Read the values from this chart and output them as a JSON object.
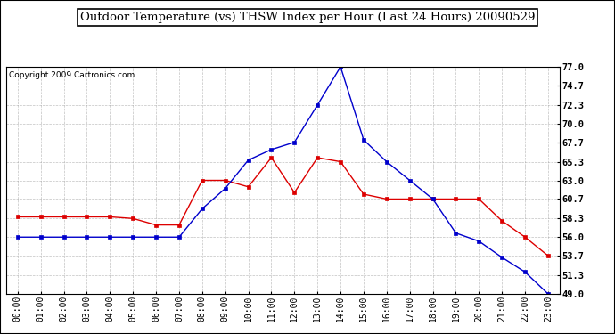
{
  "title": "Outdoor Temperature (vs) THSW Index per Hour (Last 24 Hours) 20090529",
  "copyright": "Copyright 2009 Cartronics.com",
  "hours": [
    0,
    1,
    2,
    3,
    4,
    5,
    6,
    7,
    8,
    9,
    10,
    11,
    12,
    13,
    14,
    15,
    16,
    17,
    18,
    19,
    20,
    21,
    22,
    23
  ],
  "x_labels": [
    "00:00",
    "01:00",
    "02:00",
    "03:00",
    "04:00",
    "05:00",
    "06:00",
    "07:00",
    "08:00",
    "09:00",
    "10:00",
    "11:00",
    "12:00",
    "13:00",
    "14:00",
    "15:00",
    "16:00",
    "17:00",
    "18:00",
    "19:00",
    "20:00",
    "21:00",
    "22:00",
    "23:00"
  ],
  "red_data": [
    58.5,
    58.5,
    58.5,
    58.5,
    58.5,
    58.3,
    57.5,
    57.5,
    63.0,
    63.0,
    62.2,
    65.8,
    61.5,
    65.8,
    65.3,
    61.3,
    60.7,
    60.7,
    60.7,
    60.7,
    60.7,
    58.0,
    56.0,
    53.7
  ],
  "blue_data": [
    56.0,
    56.0,
    56.0,
    56.0,
    56.0,
    56.0,
    56.0,
    56.0,
    59.5,
    62.0,
    65.5,
    66.8,
    67.7,
    72.3,
    77.0,
    68.0,
    65.3,
    63.0,
    60.7,
    56.5,
    55.5,
    53.5,
    51.7,
    49.0
  ],
  "red_color": "#dd0000",
  "blue_color": "#0000cc",
  "ylim_min": 49.0,
  "ylim_max": 77.0,
  "yticks": [
    49.0,
    51.3,
    53.7,
    56.0,
    58.3,
    60.7,
    63.0,
    65.3,
    67.7,
    70.0,
    72.3,
    74.7,
    77.0
  ],
  "bg_color": "#ffffff",
  "grid_color": "#999999",
  "title_fontsize": 9.5,
  "copyright_fontsize": 6.5
}
